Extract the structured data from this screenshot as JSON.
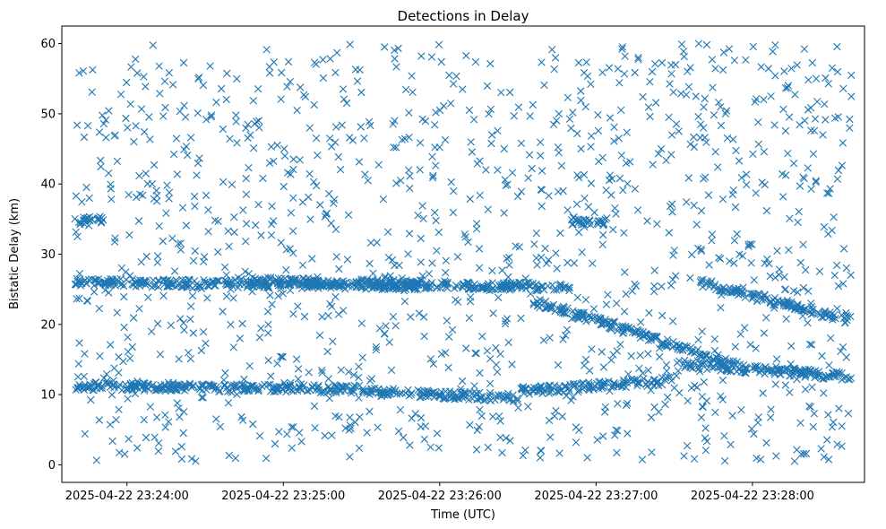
{
  "chart_data": {
    "type": "scatter",
    "title": "Detections in Delay",
    "xlabel": "Time (UTC)",
    "ylabel": "Bistatic Delay (km)",
    "x_ticks": [
      "2025-04-22 23:24:00",
      "2025-04-22 23:25:00",
      "2025-04-22 23:26:00",
      "2025-04-22 23:27:00",
      "2025-04-22 23:28:00"
    ],
    "y_ticks": [
      0,
      10,
      20,
      30,
      40,
      50,
      60
    ],
    "xlim": [
      "2025-04-22 23:23:35",
      "2025-04-22 23:28:43"
    ],
    "ylim": [
      -2.5,
      62.5
    ],
    "marker": "x",
    "color": "#1f77b4",
    "grid": false,
    "legend": "none",
    "series": [
      {
        "x_start": "2025-04-22 23:23:40",
        "x_end": "2025-04-22 23:28:38",
        "note_points": "dense random clutter detections",
        "tracks": [
          {
            "x0": "2025-04-22 23:23:40",
            "y0": 26.0,
            "x1": "2025-04-22 23:25:55",
            "y1": 25.5
          },
          {
            "x0": "2025-04-22 23:24:40",
            "y0": 26.2,
            "x1": "2025-04-22 23:26:50",
            "y1": 25.3
          },
          {
            "x0": "2025-04-22 23:26:35",
            "y0": 23.5,
            "x1": "2025-04-22 23:27:55",
            "y1": 14.0
          },
          {
            "x0": "2025-04-22 23:27:40",
            "y0": 26.0,
            "x1": "2025-04-22 23:28:38",
            "y1": 20.5
          },
          {
            "x0": "2025-04-22 23:23:40",
            "y0": 11.2,
            "x1": "2025-04-22 23:25:30",
            "y1": 10.8
          },
          {
            "x0": "2025-04-22 23:25:30",
            "y0": 10.5,
            "x1": "2025-04-22 23:26:30",
            "y1": 9.5
          },
          {
            "x0": "2025-04-22 23:26:30",
            "y0": 10.5,
            "x1": "2025-04-22 23:27:30",
            "y1": 12.0
          },
          {
            "x0": "2025-04-22 23:27:30",
            "y0": 14.5,
            "x1": "2025-04-22 23:28:38",
            "y1": 12.5
          },
          {
            "x0": "2025-04-22 23:23:40",
            "y0": 34.8,
            "x1": "2025-04-22 23:23:52",
            "y1": 34.8
          },
          {
            "x0": "2025-04-22 23:26:50",
            "y0": 34.7,
            "x1": "2025-04-22 23:27:05",
            "y1": 34.7
          }
        ]
      }
    ]
  }
}
